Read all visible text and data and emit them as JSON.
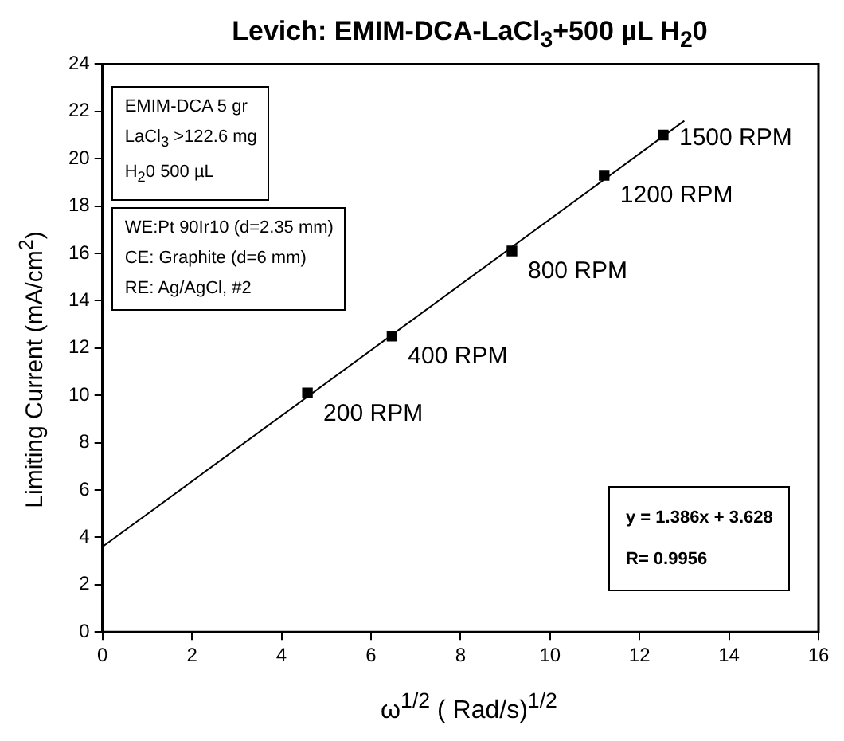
{
  "chart_data": {
    "type": "scatter",
    "title": "Levich: EMIM-DCA-LaCl$_{3}$+500 µL H$_{2}$0",
    "xlabel": "ω$^{1/2}$ ( Rad/s)$^{1/2}$",
    "ylabel": "Limiting Current (mA/cm$^{2}$)",
    "xlim": [
      0,
      16
    ],
    "xticks": [
      0,
      2,
      4,
      6,
      8,
      10,
      12,
      14,
      16
    ],
    "ylim": [
      0,
      24
    ],
    "yticks": [
      0,
      2,
      4,
      6,
      8,
      10,
      12,
      14,
      16,
      18,
      20,
      22,
      24
    ],
    "grid": false,
    "legend": false,
    "series": [
      {
        "type": "scatter",
        "color": "#000000",
        "marker": "square",
        "x": [
          4.58,
          6.47,
          9.15,
          11.21,
          12.53
        ],
        "values": [
          10.1,
          12.5,
          16.1,
          19.3,
          21.0
        ]
      },
      {
        "type": "line",
        "color": "#000000",
        "marker": "none",
        "line_style": "solid",
        "x": [
          0,
          13
        ],
        "values": [
          3.6,
          21.6
        ]
      }
    ],
    "annotations": [
      {
        "text": "200 RPM",
        "x": 4.58,
        "y": 10.1
      },
      {
        "text": "400 RPM",
        "x": 6.47,
        "y": 12.5
      },
      {
        "text": "800 RPM",
        "x": 9.15,
        "y": 16.1
      },
      {
        "text": "1200 RPM",
        "x": 11.21,
        "y": 19.3
      },
      {
        "text": "1500 RPM",
        "x": 12.53,
        "y": 21.0
      },
      "EMIM-DCA  5 gr",
      "LaCl$_{3}$  >122.6 mg",
      "H$_{2}$0  500 µL",
      "WE:Pt 90Ir10 (d=2.35 mm)",
      "CE: Graphite (d=6 mm)",
      "RE: Ag/AgCl, #2",
      "y = 1.386x + 3.628",
      "R= 0.9956"
    ]
  }
}
